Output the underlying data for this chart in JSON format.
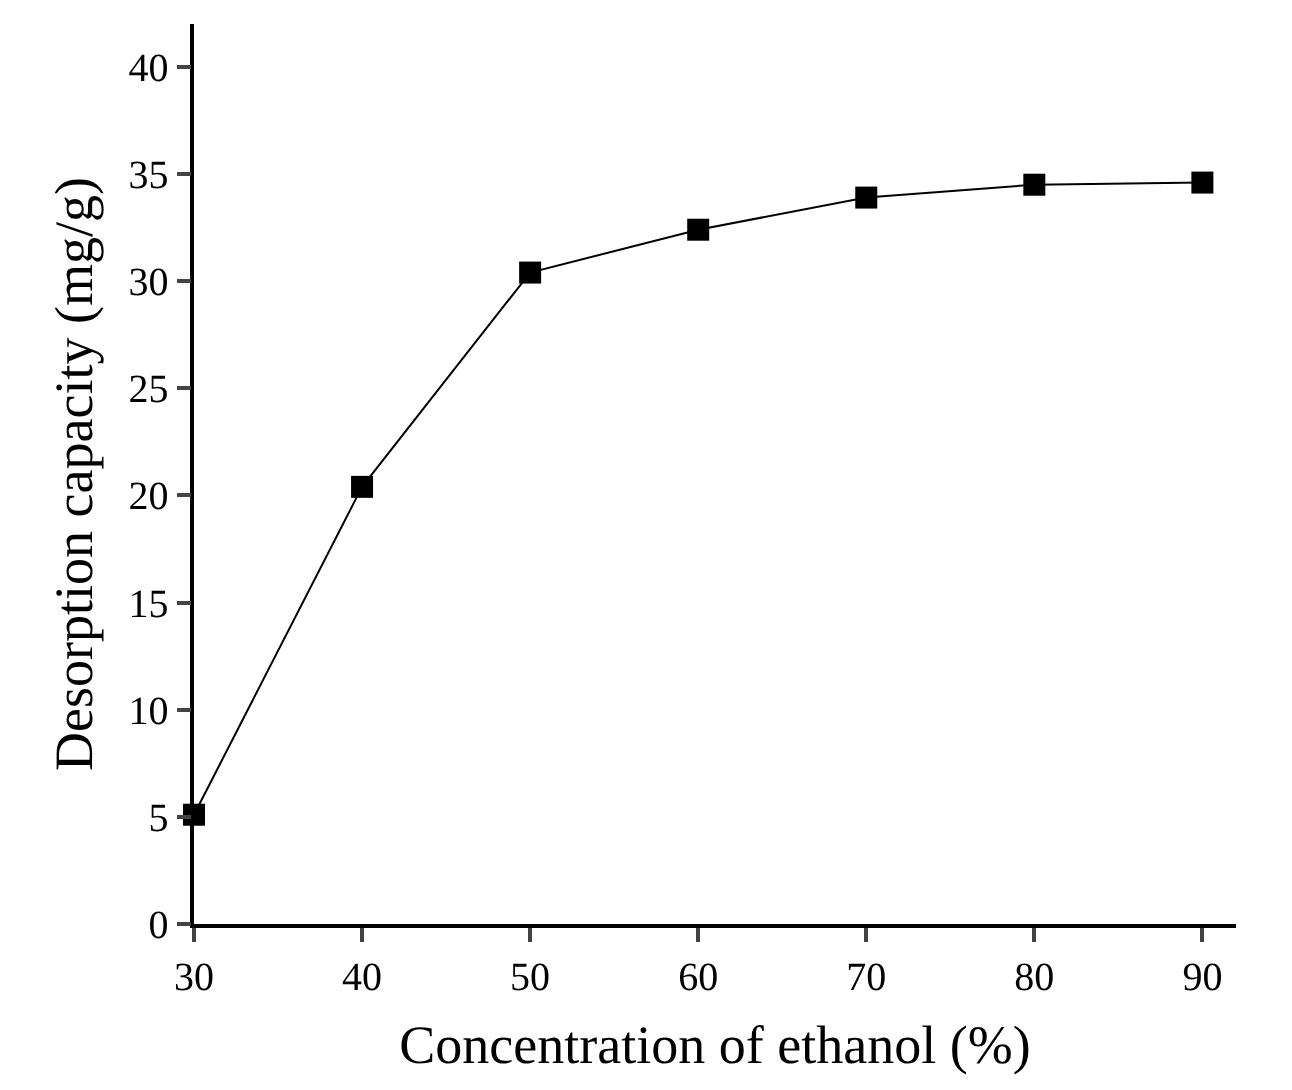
{
  "chart_data": {
    "type": "line",
    "xlabel": "Concentration of ethanol (%)",
    "ylabel": "Desorption capacity (mg/g)",
    "x": [
      30,
      40,
      50,
      60,
      70,
      80,
      90
    ],
    "series": [
      {
        "color": "#000000",
        "values": [
          5.1,
          20.4,
          30.4,
          32.4,
          33.9,
          34.5,
          34.6
        ]
      }
    ],
    "xlim": [
      30,
      92
    ],
    "xticks": [
      30,
      40,
      50,
      60,
      70,
      80,
      90
    ],
    "ylim": [
      0,
      42
    ],
    "yticks": [
      0,
      5,
      10,
      15,
      20,
      25,
      30,
      35,
      40
    ],
    "grid": false,
    "legend": false,
    "marker": "square",
    "line_style": "solid"
  }
}
